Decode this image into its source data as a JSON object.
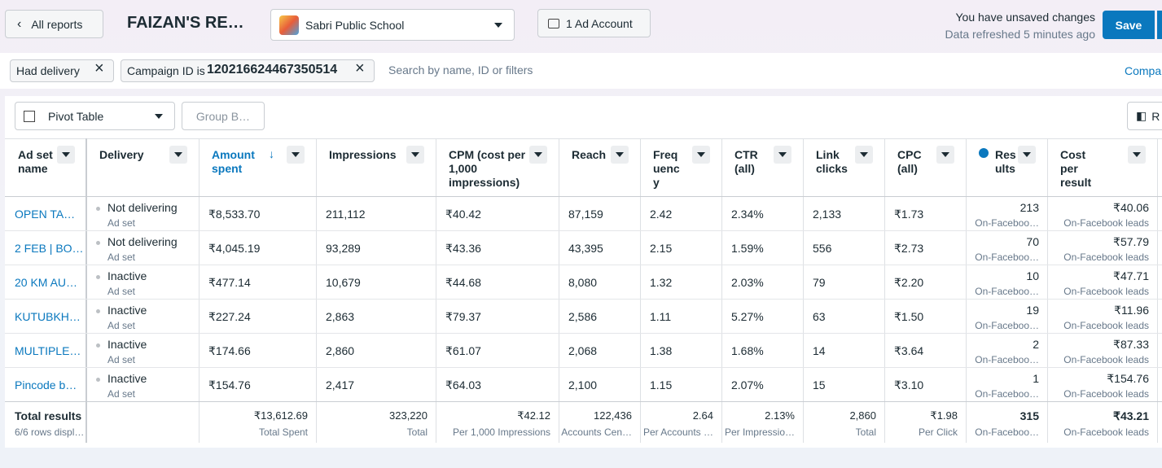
{
  "header": {
    "back": "All reports",
    "title": "FAIZAN'S RE…",
    "account": "Sabri Public School",
    "ad_account": "1 Ad Account",
    "unsaved": "You have unsaved changes",
    "refreshed": "Data refreshed 5 minutes ago",
    "save": "Save"
  },
  "filters": {
    "chips": [
      {
        "label": "Had delivery"
      },
      {
        "label": "Campaign ID is",
        "value": "120216624467350514"
      }
    ],
    "search": "Search by name, ID or filters",
    "compare": "Compa"
  },
  "toolbar": {
    "view": "Pivot Table",
    "group": "Group B…",
    "right": "R"
  },
  "table": {
    "columns": [
      "Ad set name",
      "Delivery",
      "Amount spent",
      "Impressions",
      "CPM (cost per 1,000 impressions)",
      "Reach",
      "Frequency",
      "CTR (all)",
      "Link clicks",
      "CPC (all)",
      "Results",
      "Cost per result"
    ],
    "rows": [
      [
        [
          "OPEN TA…"
        ],
        [
          "Not delivering",
          "Ad set"
        ],
        [
          "₹8,533.70"
        ],
        [
          "211,112"
        ],
        [
          "₹40.42"
        ],
        [
          "87,159"
        ],
        [
          "2.42"
        ],
        [
          "2.34%"
        ],
        [
          "2,133"
        ],
        [
          "₹1.73"
        ],
        [
          "213",
          "On-Faceboo…"
        ],
        [
          "₹40.06",
          "On-Facebook leads"
        ]
      ],
      [
        [
          "2 FEB | BO…"
        ],
        [
          "Not delivering",
          "Ad set"
        ],
        [
          "₹4,045.19"
        ],
        [
          "93,289"
        ],
        [
          "₹43.36"
        ],
        [
          "43,395"
        ],
        [
          "2.15"
        ],
        [
          "1.59%"
        ],
        [
          "556"
        ],
        [
          "₹2.73"
        ],
        [
          "70",
          "On-Faceboo…"
        ],
        [
          "₹57.79",
          "On-Facebook leads"
        ]
      ],
      [
        [
          "20 KM AU…"
        ],
        [
          "Inactive",
          "Ad set"
        ],
        [
          "₹477.14"
        ],
        [
          "10,679"
        ],
        [
          "₹44.68"
        ],
        [
          "8,080"
        ],
        [
          "1.32"
        ],
        [
          "2.03%"
        ],
        [
          "79"
        ],
        [
          "₹2.20"
        ],
        [
          "10",
          "On-Faceboo…"
        ],
        [
          "₹47.71",
          "On-Facebook leads"
        ]
      ],
      [
        [
          "KUTUBKH…"
        ],
        [
          "Inactive",
          "Ad set"
        ],
        [
          "₹227.24"
        ],
        [
          "2,863"
        ],
        [
          "₹79.37"
        ],
        [
          "2,586"
        ],
        [
          "1.11"
        ],
        [
          "5.27%"
        ],
        [
          "63"
        ],
        [
          "₹1.50"
        ],
        [
          "19",
          "On-Faceboo…"
        ],
        [
          "₹11.96",
          "On-Facebook leads"
        ]
      ],
      [
        [
          "MULTIPLE…"
        ],
        [
          "Inactive",
          "Ad set"
        ],
        [
          "₹174.66"
        ],
        [
          "2,860"
        ],
        [
          "₹61.07"
        ],
        [
          "2,068"
        ],
        [
          "1.38"
        ],
        [
          "1.68%"
        ],
        [
          "14"
        ],
        [
          "₹3.64"
        ],
        [
          "2",
          "On-Faceboo…"
        ],
        [
          "₹87.33",
          "On-Facebook leads"
        ]
      ],
      [
        [
          "Pincode b…"
        ],
        [
          "Inactive",
          "Ad set"
        ],
        [
          "₹154.76"
        ],
        [
          "2,417"
        ],
        [
          "₹64.03"
        ],
        [
          "2,100"
        ],
        [
          "1.15"
        ],
        [
          "2.07%"
        ],
        [
          "15"
        ],
        [
          "₹3.10"
        ],
        [
          "1",
          "On-Faceboo…"
        ],
        [
          "₹154.76",
          "On-Facebook leads"
        ]
      ]
    ],
    "totals": [
      [
        "Total results",
        "6/6 rows displ…"
      ],
      null,
      [
        "₹13,612.69",
        "Total Spent"
      ],
      [
        "323,220",
        "Total"
      ],
      [
        "₹42.12",
        "Per 1,000 Impressions"
      ],
      [
        "122,436",
        "Accounts Cen…"
      ],
      [
        "2.64",
        "Per Accounts …"
      ],
      [
        "2.13%",
        "Per Impressio…"
      ],
      [
        "2,860",
        "Total"
      ],
      [
        "₹1.98",
        "Per Click"
      ],
      [
        "315",
        "On-Faceboo…"
      ],
      [
        "₹43.21",
        "On-Facebook leads"
      ]
    ]
  }
}
